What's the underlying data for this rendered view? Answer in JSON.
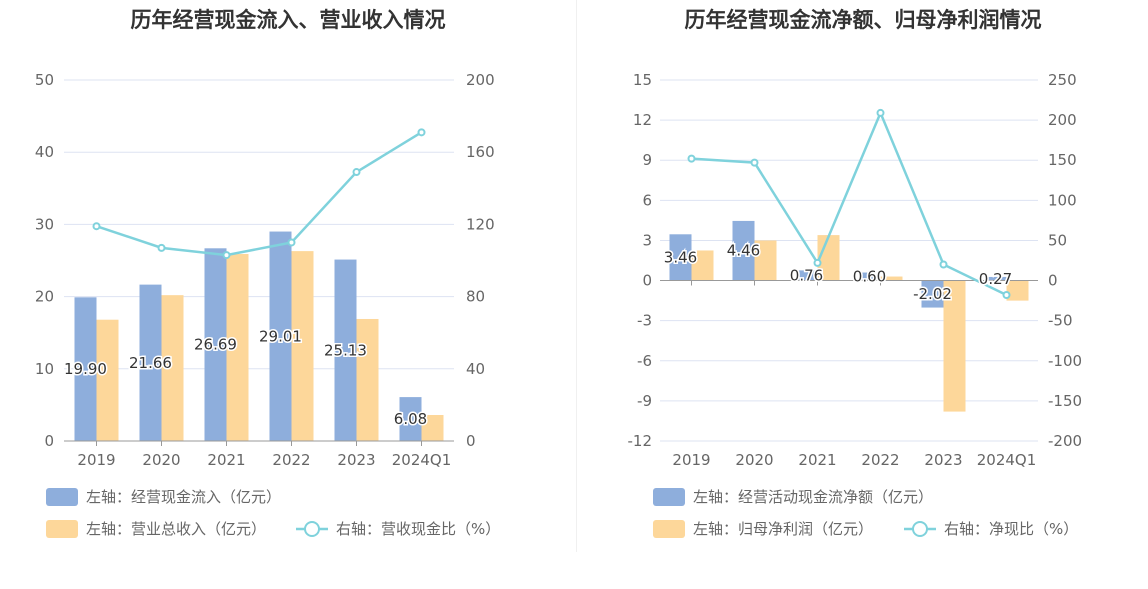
{
  "colors": {
    "blue": "#8eaedc",
    "orange": "#fdd79a",
    "line": "#7fd2dc",
    "grid": "#dde3f2",
    "axis": "#999999",
    "text": "#666666"
  },
  "chart_data": [
    {
      "type": "bar",
      "title": "历年经营现金流入、营业收入情况",
      "categories": [
        "2019",
        "2020",
        "2021",
        "2022",
        "2023",
        "2024Q1"
      ],
      "left_axis": {
        "min": 0,
        "max": 50,
        "ticks": [
          0,
          10,
          20,
          30,
          40,
          50
        ]
      },
      "right_axis": {
        "min": 0,
        "max": 200,
        "ticks": [
          0,
          40,
          80,
          120,
          160,
          200
        ]
      },
      "series": [
        {
          "name": "左轴：经营现金流入（亿元）",
          "kind": "bar",
          "axis": "left",
          "color": "#8eaedc",
          "values": [
            19.9,
            21.66,
            26.69,
            29.01,
            25.13,
            6.08
          ],
          "labels": [
            "19.90",
            "21.66",
            "26.69",
            "29.01",
            "25.13",
            "6.08"
          ]
        },
        {
          "name": "左轴：营业总收入（亿元）",
          "kind": "bar",
          "axis": "left",
          "color": "#fdd79a",
          "values": [
            16.8,
            20.2,
            25.9,
            26.3,
            16.9,
            3.6
          ]
        },
        {
          "name": "右轴：营收现金比（%）",
          "kind": "line",
          "axis": "right",
          "color": "#7fd2dc",
          "values": [
            119,
            107,
            103,
            110,
            149,
            171
          ]
        }
      ]
    },
    {
      "type": "bar",
      "title": "历年经营现金流净额、归母净利润情况",
      "categories": [
        "2019",
        "2020",
        "2021",
        "2022",
        "2023",
        "2024Q1"
      ],
      "left_axis": {
        "min": -12,
        "max": 15,
        "ticks": [
          -12,
          -9,
          -6,
          -3,
          0,
          3,
          6,
          9,
          12,
          15
        ]
      },
      "right_axis": {
        "min": -200,
        "max": 250,
        "ticks": [
          -200,
          -150,
          -100,
          -50,
          0,
          50,
          100,
          150,
          200,
          250
        ]
      },
      "series": [
        {
          "name": "左轴：经营活动现金流净额（亿元）",
          "kind": "bar",
          "axis": "left",
          "color": "#8eaedc",
          "values": [
            3.46,
            4.46,
            0.76,
            0.6,
            -2.02,
            0.27
          ],
          "labels": [
            "3.46",
            "4.46",
            "0.76",
            "0.60",
            "-2.02",
            "0.27"
          ]
        },
        {
          "name": "左轴：归母净利润（亿元）",
          "kind": "bar",
          "axis": "left",
          "color": "#fdd79a",
          "values": [
            2.25,
            3.0,
            3.4,
            0.3,
            -9.8,
            -1.5
          ]
        },
        {
          "name": "右轴：净现比（%）",
          "kind": "line",
          "axis": "right",
          "color": "#7fd2dc",
          "values": [
            152,
            147,
            22,
            209,
            20,
            -18
          ]
        }
      ]
    }
  ]
}
